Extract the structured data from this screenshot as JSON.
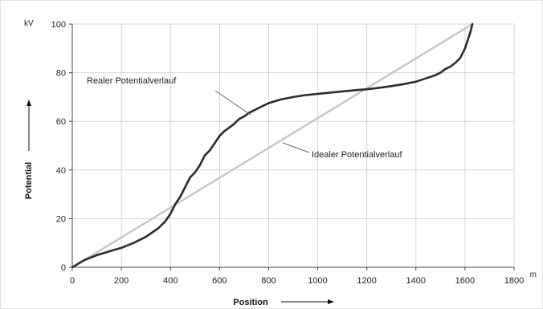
{
  "chart_data": {
    "type": "line",
    "xlabel": "Position",
    "ylabel": "Potential",
    "x_unit": "m",
    "y_unit": "kV",
    "xlim": [
      0,
      1800
    ],
    "ylim": [
      0,
      100
    ],
    "x_ticks": [
      "0",
      "200",
      "400",
      "600",
      "800",
      "1000",
      "1200",
      "1400",
      "1600",
      "1800"
    ],
    "y_ticks": [
      "0",
      "20",
      "40",
      "60",
      "80",
      "100"
    ],
    "grid": true,
    "colors": {
      "real": "#2b2b2b",
      "ideal": "#c4c4c4",
      "grid": "#d6d6d6",
      "axis": "#444444"
    },
    "series": [
      {
        "name": "Realer Potentialverlauf",
        "x": [
          0,
          50,
          100,
          150,
          200,
          250,
          300,
          350,
          380,
          400,
          420,
          440,
          460,
          480,
          500,
          520,
          540,
          560,
          580,
          600,
          620,
          640,
          660,
          680,
          700,
          720,
          740,
          760,
          800,
          850,
          900,
          950,
          1000,
          1050,
          1100,
          1150,
          1200,
          1250,
          1300,
          1350,
          1400,
          1450,
          1480,
          1500,
          1520,
          1540,
          1560,
          1580,
          1600,
          1610,
          1620,
          1630
        ],
        "y": [
          0,
          3,
          5,
          6.5,
          8,
          10,
          12.5,
          16,
          19,
          22,
          26,
          29,
          33,
          37,
          39,
          42,
          46,
          48,
          51,
          54,
          56,
          57.5,
          59,
          61,
          62,
          63.5,
          64.5,
          65.5,
          67.5,
          69,
          70,
          70.8,
          71.3,
          71.8,
          72.3,
          72.8,
          73.2,
          73.8,
          74.5,
          75.3,
          76.3,
          78,
          79,
          80,
          81.5,
          82.5,
          84,
          86,
          90,
          93,
          96,
          100
        ]
      },
      {
        "name": "Idealer Potentialverlauf",
        "x": [
          0,
          1630
        ],
        "y": [
          0,
          100
        ]
      }
    ],
    "annotations": [
      {
        "text": "Realer Potentialverlauf",
        "series": 0
      },
      {
        "text": "Idealer Potentialverlauf",
        "series": 1
      }
    ]
  }
}
